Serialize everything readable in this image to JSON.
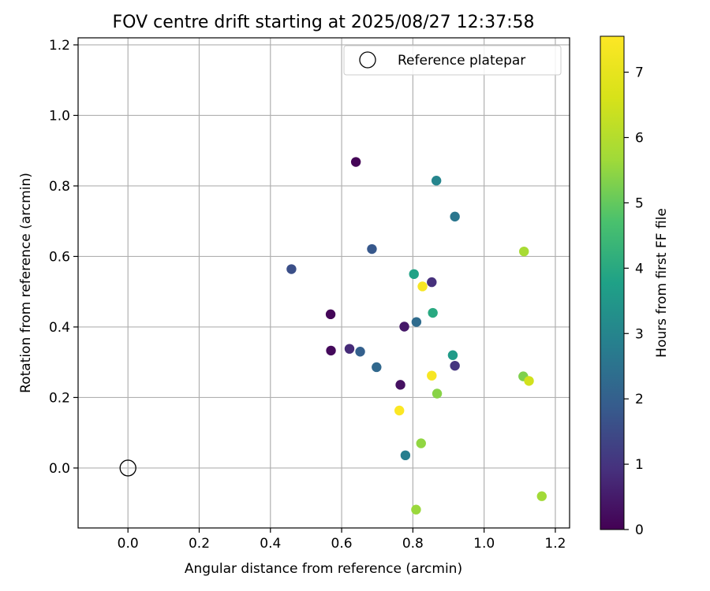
{
  "chart_data": {
    "type": "scatter",
    "title": "FOV centre drift starting at 2025/08/27 12:37:58",
    "xlabel": "Angular distance from reference (arcmin)",
    "ylabel": "Rotation from reference (arcmin)",
    "xlim": [
      -0.14,
      1.24
    ],
    "ylim": [
      -0.17,
      1.22
    ],
    "xticks": [
      0.0,
      0.2,
      0.4,
      0.6,
      0.8,
      1.0,
      1.2
    ],
    "yticks": [
      0.0,
      0.2,
      0.4,
      0.6,
      0.8,
      1.0,
      1.2
    ],
    "grid": true,
    "legend": {
      "placement": "top-right",
      "entries": [
        "Reference platepar"
      ]
    },
    "reference_point": {
      "x": 0.0,
      "y": 0.0
    },
    "colorbar": {
      "label": "Hours from first FF file",
      "colormap": "viridis",
      "range": [
        0,
        7.55
      ],
      "ticks": [
        0,
        1,
        2,
        3,
        4,
        5,
        6,
        7
      ]
    },
    "points": [
      {
        "x": 0.64,
        "y": 0.868,
        "hours": 0.05
      },
      {
        "x": 0.569,
        "y": 0.436,
        "hours": 0.1
      },
      {
        "x": 0.57,
        "y": 0.333,
        "hours": 0.15
      },
      {
        "x": 0.765,
        "y": 0.236,
        "hours": 0.3
      },
      {
        "x": 0.776,
        "y": 0.401,
        "hours": 0.45
      },
      {
        "x": 0.622,
        "y": 0.338,
        "hours": 0.8
      },
      {
        "x": 0.853,
        "y": 0.527,
        "hours": 0.9
      },
      {
        "x": 0.918,
        "y": 0.29,
        "hours": 1.0
      },
      {
        "x": 0.459,
        "y": 0.564,
        "hours": 1.6
      },
      {
        "x": 0.685,
        "y": 0.621,
        "hours": 1.8
      },
      {
        "x": 0.652,
        "y": 0.33,
        "hours": 2.0
      },
      {
        "x": 0.698,
        "y": 0.286,
        "hours": 2.2
      },
      {
        "x": 0.81,
        "y": 0.414,
        "hours": 2.3
      },
      {
        "x": 0.918,
        "y": 0.713,
        "hours": 2.6
      },
      {
        "x": 0.779,
        "y": 0.036,
        "hours": 2.8
      },
      {
        "x": 0.866,
        "y": 0.815,
        "hours": 3.0
      },
      {
        "x": 0.912,
        "y": 0.32,
        "hours": 3.6
      },
      {
        "x": 0.803,
        "y": 0.55,
        "hours": 3.8
      },
      {
        "x": 0.856,
        "y": 0.44,
        "hours": 4.0
      },
      {
        "x": 1.11,
        "y": 0.26,
        "hours": 5.3
      },
      {
        "x": 0.868,
        "y": 0.211,
        "hours": 5.4
      },
      {
        "x": 0.823,
        "y": 0.07,
        "hours": 5.5
      },
      {
        "x": 0.809,
        "y": -0.118,
        "hours": 5.6
      },
      {
        "x": 1.162,
        "y": -0.08,
        "hours": 5.7
      },
      {
        "x": 1.112,
        "y": 0.614,
        "hours": 5.8
      },
      {
        "x": 1.126,
        "y": 0.247,
        "hours": 6.5
      },
      {
        "x": 0.827,
        "y": 0.515,
        "hours": 7.4
      },
      {
        "x": 0.853,
        "y": 0.262,
        "hours": 7.4
      },
      {
        "x": 0.762,
        "y": 0.163,
        "hours": 7.5
      }
    ]
  }
}
